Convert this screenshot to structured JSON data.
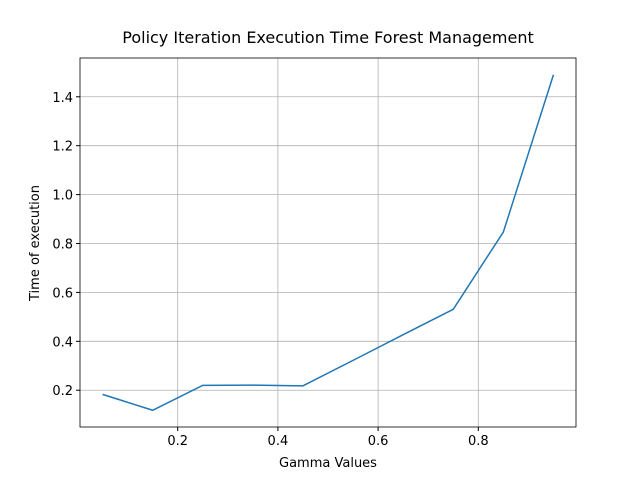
{
  "chart_data": {
    "type": "line",
    "title": "Policy Iteration Execution Time Forest Management",
    "x_label": "Gamma Values",
    "y_label": "Time of execution",
    "x": [
      0.05,
      0.15,
      0.25,
      0.35,
      0.45,
      0.55,
      0.65,
      0.75,
      0.85,
      0.95
    ],
    "series": [
      {
        "name": "Time of execution",
        "color": "#1f77b4",
        "values": [
          0.183,
          0.118,
          0.22,
          0.221,
          0.218,
          0.322,
          0.427,
          0.531,
          0.847,
          1.49
        ]
      }
    ],
    "xlim": [
      0.005,
      0.995
    ],
    "ylim": [
      0.0496,
      1.5586
    ],
    "xticks": [
      0.2,
      0.4,
      0.6,
      0.8
    ],
    "yticks": [
      0.2,
      0.4,
      0.6,
      0.8,
      {
        "value": 1.0,
        "label": "1.0"
      },
      1.2,
      1.4
    ],
    "grid": true
  }
}
